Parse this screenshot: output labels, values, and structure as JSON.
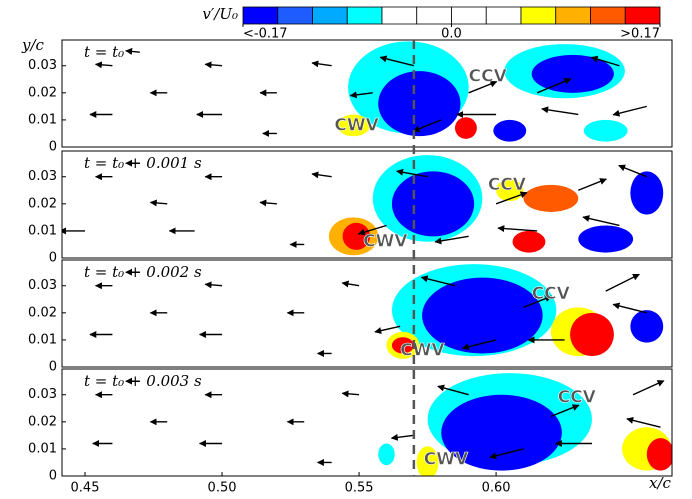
{
  "chart_data": {
    "type": "quiver",
    "xlabel": "x/c",
    "ylabel": "y/c",
    "xlim": [
      0.4416,
      0.6642
    ],
    "ylim": [
      0,
      0.0395
    ],
    "xticks": [
      0.45,
      {
        "value": 0.5,
        "label": "0.50"
      },
      0.55,
      {
        "value": 0.6,
        "label": "0.60"
      }
    ],
    "yticks": [
      0,
      0.01,
      0.02,
      0.03
    ],
    "reference_x": 0.57,
    "colorbar": {
      "label": "v′/U₀",
      "lim": [
        -0.17,
        0.17
      ],
      "colors": [
        "#0000ff",
        "#1e5cff",
        "#00aaff",
        "#00ffff",
        "#ffffff",
        "#ffffff",
        "#ffffff",
        "#ffffff",
        "#ffff00",
        "#ffb000",
        "#ff5a00",
        "#ff0000"
      ],
      "ticks": [
        {
          "value": -0.17,
          "label": "<-0.17"
        },
        {
          "value": 0,
          "label": "0.0"
        },
        {
          "value": 0.17,
          "label": ">0.17"
        }
      ]
    },
    "panels": [
      {
        "label": "t = t₀",
        "regions": [
          [
            0.568,
            0.022,
            0.022,
            0.017,
            -0.08
          ],
          [
            0.572,
            0.016,
            0.015,
            0.012,
            -0.22
          ],
          [
            0.625,
            0.028,
            0.022,
            0.01,
            -0.08
          ],
          [
            0.628,
            0.027,
            0.015,
            0.007,
            -0.22
          ],
          [
            0.548,
            0.008,
            0.006,
            0.004,
            0.07
          ],
          [
            0.589,
            0.007,
            0.004,
            0.004,
            0.22
          ],
          [
            0.605,
            0.006,
            0.006,
            0.004,
            -0.22
          ],
          [
            0.64,
            0.006,
            0.008,
            0.004,
            -0.08
          ]
        ],
        "vectors": [
          [
            0.46,
            0.03,
            -0.6,
            0.05
          ],
          [
            0.48,
            0.02,
            -0.6,
            0
          ],
          [
            0.5,
            0.03,
            -0.6,
            0.05
          ],
          [
            0.46,
            0.012,
            -0.8,
            0
          ],
          [
            0.5,
            0.012,
            -0.9,
            0
          ],
          [
            0.52,
            0.02,
            -0.6,
            0
          ],
          [
            0.54,
            0.03,
            -0.7,
            0.1
          ],
          [
            0.555,
            0.02,
            -0.8,
            -0.1
          ],
          [
            0.57,
            0.03,
            -1.2,
            0.3
          ],
          [
            0.58,
            0.01,
            -1.0,
            -0.4
          ],
          [
            0.59,
            0.02,
            1.0,
            0.4
          ],
          [
            0.6,
            0.012,
            -1.4,
            0
          ],
          [
            0.615,
            0.02,
            1.2,
            0.5
          ],
          [
            0.63,
            0.012,
            -1.3,
            0.2
          ],
          [
            0.645,
            0.03,
            -1.0,
            0.3
          ],
          [
            0.655,
            0.015,
            -1.2,
            -0.3
          ],
          [
            0.52,
            0.005,
            -0.5,
            0
          ],
          [
            0.47,
            0.035,
            -0.5,
            0.05
          ]
        ],
        "annotations": [
          {
            "text": "CCV",
            "x": 0.59,
            "y": 0.026
          },
          {
            "text": "CWV",
            "x": 0.541,
            "y": 0.008
          }
        ]
      },
      {
        "label": "t = t₀ + 0.001 s",
        "regions": [
          [
            0.575,
            0.022,
            0.02,
            0.016,
            -0.08
          ],
          [
            0.577,
            0.02,
            0.015,
            0.012,
            -0.22
          ],
          [
            0.548,
            0.008,
            0.009,
            0.007,
            0.1
          ],
          [
            0.549,
            0.008,
            0.005,
            0.005,
            0.22
          ],
          [
            0.605,
            0.025,
            0.005,
            0.004,
            0.07
          ],
          [
            0.62,
            0.022,
            0.01,
            0.005,
            0.12
          ],
          [
            0.612,
            0.006,
            0.006,
            0.004,
            0.22
          ],
          [
            0.64,
            0.007,
            0.01,
            0.005,
            -0.22
          ],
          [
            0.655,
            0.024,
            0.006,
            0.008,
            -0.22
          ]
        ],
        "vectors": [
          [
            0.46,
            0.03,
            -0.6,
            0
          ],
          [
            0.48,
            0.02,
            -0.6,
            0.05
          ],
          [
            0.5,
            0.03,
            -0.6,
            0
          ],
          [
            0.45,
            0.01,
            -0.9,
            0
          ],
          [
            0.49,
            0.01,
            -0.9,
            0
          ],
          [
            0.52,
            0.02,
            -0.6,
            0.05
          ],
          [
            0.54,
            0.03,
            -0.7,
            0.1
          ],
          [
            0.56,
            0.012,
            -1.0,
            -0.3
          ],
          [
            0.575,
            0.03,
            -1.1,
            0.2
          ],
          [
            0.59,
            0.008,
            -1.2,
            -0.2
          ],
          [
            0.6,
            0.02,
            1.1,
            0.4
          ],
          [
            0.615,
            0.01,
            -1.4,
            0.1
          ],
          [
            0.63,
            0.025,
            1.0,
            0.4
          ],
          [
            0.645,
            0.012,
            -1.3,
            0.3
          ],
          [
            0.655,
            0.03,
            -1.0,
            0.4
          ],
          [
            0.53,
            0.005,
            -0.5,
            0
          ],
          [
            0.47,
            0.035,
            -0.5,
            0
          ]
        ],
        "annotations": [
          {
            "text": "CCV",
            "x": 0.597,
            "y": 0.027
          },
          {
            "text": "CWV",
            "x": 0.5515,
            "y": 0.006
          }
        ]
      },
      {
        "label": "t = t₀ + 0.002 s",
        "regions": [
          [
            0.592,
            0.021,
            0.03,
            0.017,
            -0.08
          ],
          [
            0.595,
            0.019,
            0.022,
            0.014,
            -0.22
          ],
          [
            0.566,
            0.008,
            0.006,
            0.005,
            0.07
          ],
          [
            0.566,
            0.008,
            0.004,
            0.003,
            0.22
          ],
          [
            0.63,
            0.013,
            0.01,
            0.009,
            0.07
          ],
          [
            0.635,
            0.012,
            0.008,
            0.008,
            0.22
          ],
          [
            0.655,
            0.015,
            0.006,
            0.006,
            -0.22
          ]
        ],
        "vectors": [
          [
            0.46,
            0.03,
            -0.6,
            0
          ],
          [
            0.48,
            0.02,
            -0.6,
            0
          ],
          [
            0.5,
            0.03,
            -0.6,
            0.05
          ],
          [
            0.46,
            0.012,
            -0.8,
            0
          ],
          [
            0.5,
            0.012,
            -0.8,
            0
          ],
          [
            0.53,
            0.02,
            -0.6,
            0
          ],
          [
            0.55,
            0.03,
            -0.6,
            0.1
          ],
          [
            0.565,
            0.015,
            -0.9,
            -0.2
          ],
          [
            0.585,
            0.03,
            -1.2,
            0.3
          ],
          [
            0.6,
            0.01,
            -1.2,
            -0.3
          ],
          [
            0.61,
            0.022,
            1.0,
            0.4
          ],
          [
            0.625,
            0.01,
            -1.3,
            0
          ],
          [
            0.64,
            0.028,
            1.2,
            0.6
          ],
          [
            0.655,
            0.02,
            -1.2,
            0.3
          ],
          [
            0.54,
            0.005,
            -0.5,
            0
          ],
          [
            0.47,
            0.035,
            -0.5,
            0
          ]
        ],
        "annotations": [
          {
            "text": "CCV",
            "x": 0.613,
            "y": 0.027
          },
          {
            "text": "CWV",
            "x": 0.565,
            "y": 0.006
          }
        ]
      },
      {
        "label": "t = t₀ + 0.003 s",
        "regions": [
          [
            0.605,
            0.021,
            0.03,
            0.017,
            -0.08
          ],
          [
            0.602,
            0.016,
            0.022,
            0.014,
            -0.22
          ],
          [
            0.575,
            0.005,
            0.004,
            0.006,
            0.07
          ],
          [
            0.56,
            0.008,
            0.003,
            0.004,
            -0.08
          ],
          [
            0.655,
            0.01,
            0.009,
            0.008,
            0.07
          ],
          [
            0.66,
            0.008,
            0.005,
            0.006,
            0.22
          ]
        ],
        "vectors": [
          [
            0.46,
            0.03,
            -0.6,
            0
          ],
          [
            0.48,
            0.02,
            -0.6,
            0
          ],
          [
            0.5,
            0.03,
            -0.6,
            0
          ],
          [
            0.46,
            0.012,
            -0.7,
            0
          ],
          [
            0.5,
            0.012,
            -0.8,
            0
          ],
          [
            0.53,
            0.02,
            -0.6,
            0
          ],
          [
            0.55,
            0.03,
            -0.6,
            0.05
          ],
          [
            0.57,
            0.015,
            -0.8,
            -0.1
          ],
          [
            0.59,
            0.03,
            -1.1,
            0.3
          ],
          [
            0.61,
            0.01,
            -1.2,
            -0.3
          ],
          [
            0.62,
            0.022,
            1.0,
            0.4
          ],
          [
            0.635,
            0.012,
            -1.3,
            0
          ],
          [
            0.65,
            0.03,
            1.1,
            0.5
          ],
          [
            0.66,
            0.018,
            -1.2,
            0.3
          ],
          [
            0.54,
            0.005,
            -0.5,
            0
          ],
          [
            0.47,
            0.035,
            -0.5,
            0
          ]
        ],
        "annotations": [
          {
            "text": "CCV",
            "x": 0.6225,
            "y": 0.029
          },
          {
            "text": "CWV",
            "x": 0.5736,
            "y": 0.006
          }
        ]
      }
    ]
  }
}
